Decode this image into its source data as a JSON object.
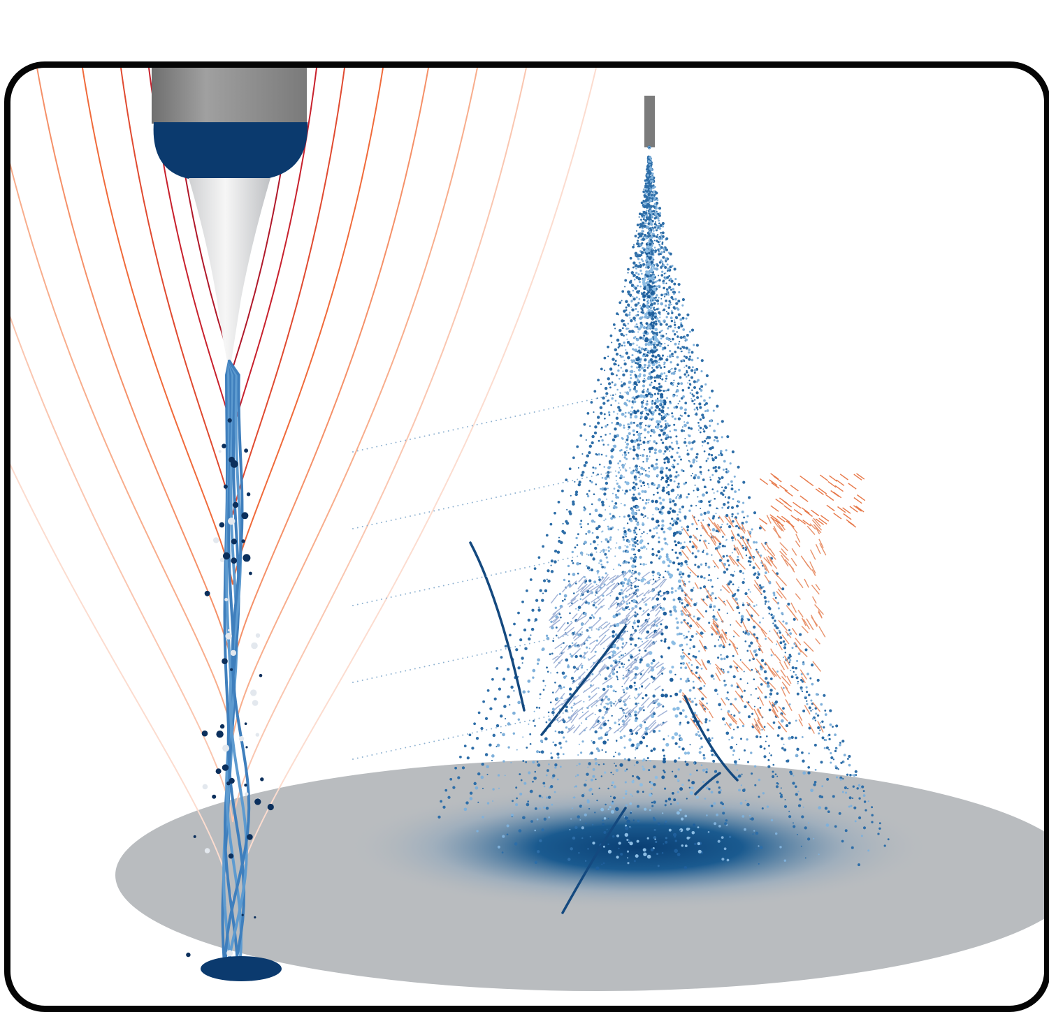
{
  "figure": {
    "description_visible_text": "",
    "colors": {
      "frame_border": "#050505",
      "background": "#ffffff",
      "nozzle_gray": "#8c8c8c",
      "meniscus_blue": "#0b3a6e",
      "jet_blue": "#4a8bc4",
      "droplet_dark_blue": "#0b2f5c",
      "collector_gray": "#b9bcbf",
      "deposit_blue": "#0a3f74",
      "field_line_dark_red": "#b0182a",
      "field_line_orange": "#f06a3a",
      "field_line_light": "#f9c6b0",
      "arrow_warm": "#e8916a",
      "arrow_cool": "#9fb1d6"
    },
    "panels": [
      {
        "name": "left-panel",
        "content": "electrospray-cone-jet-with-field-lines"
      },
      {
        "name": "right-panel",
        "content": "droplet-trajectories-with-velocity-arrows"
      }
    ]
  }
}
